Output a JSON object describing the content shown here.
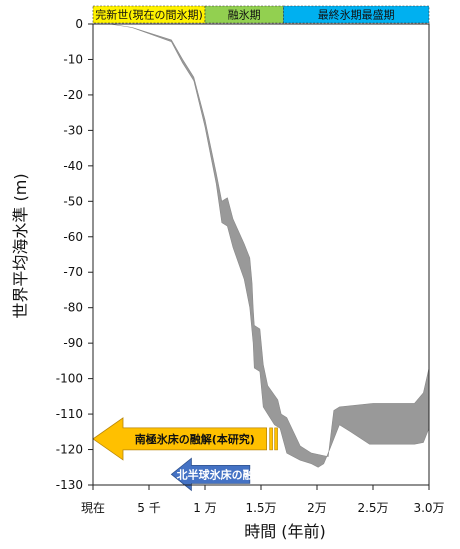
{
  "chart_data": {
    "type": "area",
    "xlabel": "時間 (年前)",
    "ylabel": "世界平均海水準 (m)",
    "xlim": [
      0,
      30000
    ],
    "ylim": [
      -130,
      0
    ],
    "x_ticks": [
      {
        "value": 0,
        "label": "現在"
      },
      {
        "value": 5000,
        "label": "5 千"
      },
      {
        "value": 10000,
        "label": "1 万"
      },
      {
        "value": 15000,
        "label": "1.5万"
      },
      {
        "value": 20000,
        "label": "2万"
      },
      {
        "value": 25000,
        "label": "2.5万"
      },
      {
        "value": 30000,
        "label": "3.0万"
      }
    ],
    "y_ticks": [
      0,
      -10,
      -20,
      -30,
      -40,
      -50,
      -60,
      -70,
      -80,
      -90,
      -100,
      -110,
      -120,
      -130
    ],
    "series": [
      {
        "upper": [
          [
            1500,
            0
          ],
          [
            3500,
            -1
          ],
          [
            7000,
            -4.5
          ],
          [
            8000,
            -10
          ],
          [
            9000,
            -15
          ],
          [
            10000,
            -27
          ],
          [
            11000,
            -42
          ],
          [
            11500,
            -50
          ],
          [
            12000,
            -49
          ],
          [
            12500,
            -55
          ],
          [
            13500,
            -62
          ],
          [
            14000,
            -66
          ],
          [
            14200,
            -73
          ],
          [
            14300,
            -80
          ],
          [
            14400,
            -85
          ],
          [
            14900,
            -86
          ],
          [
            15200,
            -96
          ],
          [
            15600,
            -102
          ],
          [
            16500,
            -106
          ],
          [
            16800,
            -110
          ],
          [
            17300,
            -111
          ],
          [
            18500,
            -119
          ],
          [
            19500,
            -121
          ],
          [
            21000,
            -122
          ],
          [
            21500,
            -109
          ],
          [
            22000,
            -108
          ],
          [
            25000,
            -107
          ],
          [
            28700,
            -107
          ],
          [
            29500,
            -104
          ],
          [
            30000,
            -97
          ]
        ],
        "lower": [
          [
            1500,
            0
          ],
          [
            3500,
            -1
          ],
          [
            7000,
            -5
          ],
          [
            8000,
            -11
          ],
          [
            9000,
            -16
          ],
          [
            10000,
            -29
          ],
          [
            11000,
            -45
          ],
          [
            11500,
            -56
          ],
          [
            12000,
            -57
          ],
          [
            12500,
            -63
          ],
          [
            13500,
            -72
          ],
          [
            14000,
            -80
          ],
          [
            14300,
            -90
          ],
          [
            14400,
            -97
          ],
          [
            14900,
            -98
          ],
          [
            15200,
            -108
          ],
          [
            15600,
            -110
          ],
          [
            16200,
            -113
          ],
          [
            16700,
            -114
          ],
          [
            17300,
            -121
          ],
          [
            18500,
            -123
          ],
          [
            19500,
            -124
          ],
          [
            20100,
            -125
          ],
          [
            20600,
            -124
          ],
          [
            21000,
            -121
          ],
          [
            22000,
            -113
          ],
          [
            23000,
            -115
          ],
          [
            24700,
            -118.5
          ],
          [
            28700,
            -118.5
          ],
          [
            29500,
            -118
          ],
          [
            30000,
            -114
          ]
        ]
      }
    ],
    "color": "#999999",
    "periods": [
      {
        "label": "完新世(現在の間氷期)",
        "x_start": 0,
        "x_end": 10000,
        "color": "#fff200"
      },
      {
        "label": "融氷期",
        "x_start": 10000,
        "x_end": 17000,
        "color": "#92d050"
      },
      {
        "label": "最終氷期最盛期",
        "x_start": 17000,
        "x_end": 30000,
        "color": "#00b0f0"
      }
    ],
    "annotations": [
      {
        "label": "南極氷床の融解(本研究)",
        "x_from": 15500,
        "x_to": 0,
        "y": -117,
        "color": "#ffc000",
        "text_color": "#111111"
      },
      {
        "label": "北半球氷床の融解",
        "x_from": 14000,
        "x_to": 7000,
        "y": -127,
        "color": "#4472c4",
        "text_color": "#ffffff"
      }
    ]
  }
}
